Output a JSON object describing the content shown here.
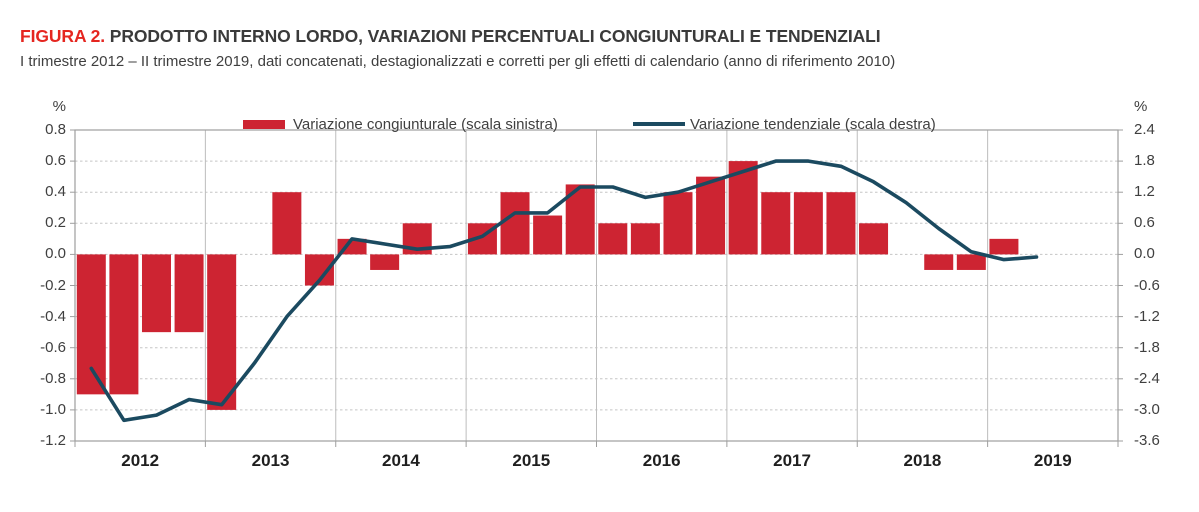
{
  "header": {
    "figure_label": "FIGURA 2.",
    "title": "PRODOTTO INTERNO LORDO, VARIAZIONI PERCENTUALI CONGIUNTURALI E TENDENZIALI",
    "subtitle": "I trimestre 2012 – II trimestre 2019, dati concatenati, destagionalizzati e corretti per gli effetti di calendario (anno di riferimento 2010)"
  },
  "legend": {
    "congiunturale_label": "Variazione congiunturale (scala sinistra)",
    "tendenziale_label": "Variazione tendenziale (scala destra)"
  },
  "colors": {
    "bar": "#cd2432",
    "line": "#1b4a60",
    "title_red": "#e52620",
    "text": "#3f3f3f",
    "grid_dashed": "#c5c5c5",
    "grid_vertical": "#bdbdbd",
    "frame": "#9e9e9e"
  },
  "chart_data": {
    "type": "combo-bar-line",
    "title": "Prodotto interno lordo, variazioni percentuali congiunturali e tendenziali",
    "categories": [
      "2012-T1",
      "2012-T2",
      "2012-T3",
      "2012-T4",
      "2013-T1",
      "2013-T2",
      "2013-T3",
      "2013-T4",
      "2014-T1",
      "2014-T2",
      "2014-T3",
      "2014-T4",
      "2015-T1",
      "2015-T2",
      "2015-T3",
      "2015-T4",
      "2016-T1",
      "2016-T2",
      "2016-T3",
      "2016-T4",
      "2017-T1",
      "2017-T2",
      "2017-T3",
      "2017-T4",
      "2018-T1",
      "2018-T2",
      "2018-T3",
      "2018-T4",
      "2019-T1",
      "2019-T2"
    ],
    "x_year_labels": [
      "2012",
      "2013",
      "2014",
      "2015",
      "2016",
      "2017",
      "2018",
      "2019"
    ],
    "series": [
      {
        "name": "Variazione congiunturale (scala sinistra)",
        "type": "bar",
        "axis": "left",
        "color": "#cd2432",
        "values": [
          -0.9,
          -0.9,
          -0.5,
          -0.5,
          -1.0,
          0.0,
          0.4,
          -0.2,
          0.1,
          -0.1,
          0.2,
          0.0,
          0.2,
          0.4,
          0.25,
          0.45,
          0.2,
          0.2,
          0.4,
          0.5,
          0.6,
          0.4,
          0.4,
          0.4,
          0.2,
          0.0,
          -0.1,
          -0.1,
          0.1,
          0.0
        ]
      },
      {
        "name": "Variazione tendenziale (scala destra)",
        "type": "line",
        "axis": "right",
        "color": "#1b4a60",
        "values": [
          -2.2,
          -3.2,
          -3.1,
          -2.8,
          -2.9,
          -2.1,
          -1.2,
          -0.5,
          0.3,
          0.2,
          0.1,
          0.15,
          0.35,
          0.8,
          0.8,
          1.3,
          1.3,
          1.1,
          1.2,
          1.4,
          1.6,
          1.8,
          1.8,
          1.7,
          1.4,
          1.0,
          0.5,
          0.05,
          -0.1,
          -0.05
        ]
      }
    ],
    "left_axis": {
      "unit": "%",
      "max": 0.8,
      "min": -1.2,
      "tick_labels": [
        "0.8",
        "0.6",
        "0.4",
        "0.2",
        "0.0",
        "-0.2",
        "-0.4",
        "-0.6",
        "-0.8",
        "-1.0",
        "-1.2"
      ]
    },
    "right_axis": {
      "unit": "%",
      "max": 2.4,
      "min": -3.6,
      "tick_labels": [
        "2.4",
        "1.8",
        "1.2",
        "0.6",
        "0.0",
        "-0.6",
        "-1.2",
        "-1.8",
        "-2.4",
        "-3.0",
        "-3.6"
      ]
    },
    "grid": {
      "horizontal": "dashed",
      "vertical": "solid at year boundaries"
    },
    "legend_position": "top"
  }
}
